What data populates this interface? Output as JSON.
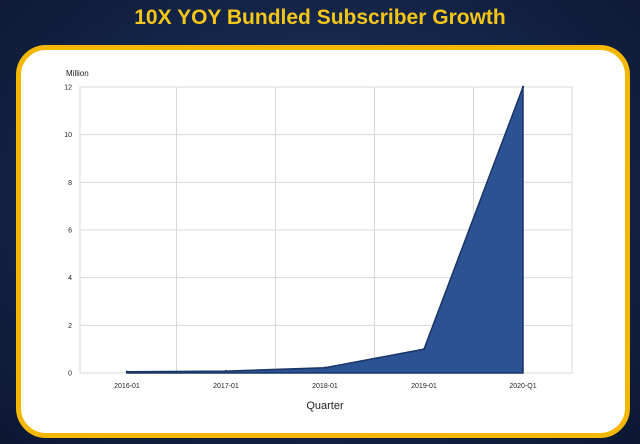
{
  "slide": {
    "title": "10X YOY Bundled Subscriber Growth"
  },
  "colors": {
    "title": "#f5c518",
    "card_border": "#f5b800",
    "area_fill": "#2b5393",
    "area_edge": "#1a3566",
    "grid": "#d8d8d8"
  },
  "chart_data": {
    "type": "area",
    "title": "10X YOY Bundled Subscriber Growth",
    "xlabel": "Quarter",
    "ylabel": "Million",
    "categories": [
      "2016-01",
      "2017-01",
      "2018-01",
      "2019-01",
      "2020-Q1"
    ],
    "x": [
      0,
      1,
      2,
      3,
      4
    ],
    "series": [
      {
        "values": [
          0.05,
          0.08,
          0.22,
          1.0,
          12.0
        ]
      }
    ],
    "ylim": [
      0,
      12
    ],
    "yticks": [
      0,
      2,
      4,
      6,
      8,
      10,
      12
    ],
    "grid": true,
    "legend": "none"
  }
}
